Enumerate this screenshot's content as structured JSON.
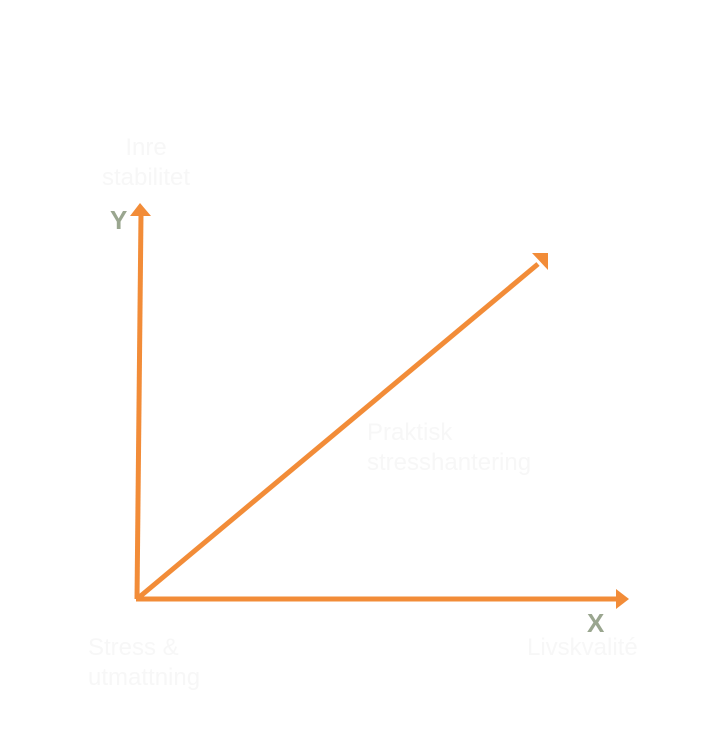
{
  "colors": {
    "arrow": "#f28c38",
    "axis_letter": "#9aa68f",
    "label": "#f7f7f7"
  },
  "y_axis": {
    "letter": "Y",
    "label_line1": "Inre",
    "label_line2": "stabilitet"
  },
  "x_axis": {
    "letter": "X",
    "label": "Livskvalité"
  },
  "origin": {
    "label_line1": "Stress &",
    "label_line2": "utmattning"
  },
  "diagonal": {
    "label_line1": "Praktisk",
    "label_line2": "stresshantering"
  }
}
